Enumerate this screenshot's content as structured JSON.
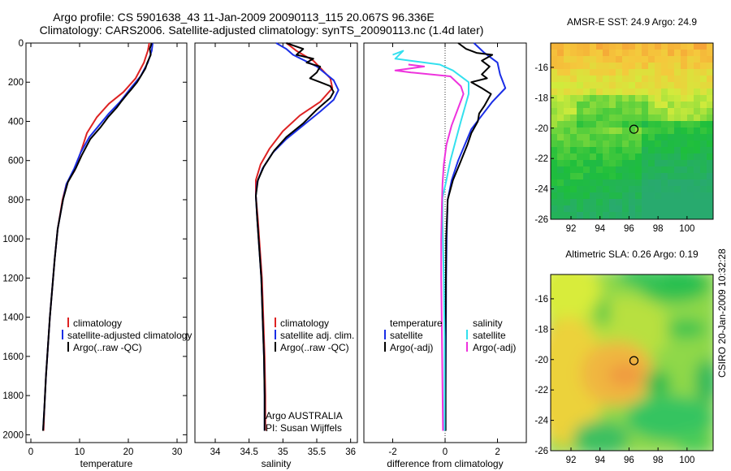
{
  "title_line1": "Argo profile: CS 5901638_43 11-Jan-2009 20090113_115 20.067S 96.336E",
  "title_line2": "Climatology: CARS2006. Satellite-adjusted climatology: synTS_20090113.nc (1.4d later)",
  "credit": "CSIRO 20-Jan-2009 10:32:28",
  "argo_line1": "Argo AUSTRALIA",
  "argo_line2": "PI: Susan Wijffels",
  "colors": {
    "climatology": "#dd2222",
    "satellite": "#1a2ee6",
    "argo": "#000000",
    "cyan": "#33e0ee",
    "magenta": "#ee33dd"
  },
  "chart_data": [
    {
      "type": "line",
      "xlabel": "temperature",
      "xlim": [
        -1,
        32
      ],
      "ylim": [
        0,
        2040
      ],
      "y_reversed": true,
      "xticks": [
        0,
        10,
        20,
        30
      ],
      "yticks": [
        0,
        200,
        400,
        600,
        800,
        1000,
        1200,
        1400,
        1600,
        1800,
        2000
      ],
      "legend": [
        "climatology",
        "satellite-adjusted climatology",
        "Argo(..raw -QC)"
      ],
      "series": [
        {
          "name": "climatology",
          "color": "climatology",
          "points": [
            [
              24.3,
              0
            ],
            [
              24,
              40
            ],
            [
              23.2,
              100
            ],
            [
              21.5,
              180
            ],
            [
              19,
              250
            ],
            [
              16,
              310
            ],
            [
              13.5,
              380
            ],
            [
              11.5,
              460
            ],
            [
              10.2,
              560
            ],
            [
              9,
              650
            ],
            [
              7.3,
              720
            ],
            [
              6.5,
              800
            ],
            [
              5.5,
              950
            ],
            [
              4.9,
              1100
            ],
            [
              4.4,
              1250
            ],
            [
              3.9,
              1400
            ],
            [
              3.5,
              1550
            ],
            [
              3.1,
              1700
            ],
            [
              2.8,
              1850
            ],
            [
              2.6,
              1980
            ]
          ]
        },
        {
          "name": "satellite-adjusted climatology",
          "color": "satellite",
          "points": [
            [
              25,
              0
            ],
            [
              24.8,
              40
            ],
            [
              24,
              100
            ],
            [
              22.5,
              170
            ],
            [
              20.5,
              230
            ],
            [
              18.3,
              300
            ],
            [
              16,
              360
            ],
            [
              14,
              420
            ],
            [
              12,
              480
            ],
            [
              10.2,
              560
            ],
            [
              8.9,
              640
            ],
            [
              7.3,
              720
            ],
            [
              6.6,
              800
            ],
            [
              5.5,
              950
            ],
            [
              4.9,
              1100
            ],
            [
              4.4,
              1250
            ],
            [
              3.9,
              1400
            ],
            [
              3.5,
              1550
            ],
            [
              3.1,
              1700
            ],
            [
              2.8,
              1850
            ],
            [
              2.5,
              1980
            ]
          ]
        },
        {
          "name": "Argo(..raw -QC)",
          "color": "argo",
          "points": [
            [
              24.8,
              0
            ],
            [
              24.4,
              30
            ],
            [
              24.6,
              60
            ],
            [
              23.9,
              100
            ],
            [
              23.5,
              130
            ],
            [
              22.3,
              180
            ],
            [
              21.8,
              200
            ],
            [
              20.5,
              240
            ],
            [
              19.8,
              260
            ],
            [
              18.5,
              300
            ],
            [
              17.6,
              330
            ],
            [
              15.8,
              380
            ],
            [
              14.3,
              430
            ],
            [
              12.2,
              490
            ],
            [
              10.5,
              570
            ],
            [
              9.2,
              640
            ],
            [
              7.6,
              710
            ],
            [
              6.6,
              800
            ],
            [
              5.5,
              950
            ],
            [
              4.9,
              1100
            ],
            [
              4.4,
              1250
            ],
            [
              3.9,
              1400
            ],
            [
              3.5,
              1550
            ],
            [
              3.1,
              1700
            ],
            [
              2.8,
              1850
            ],
            [
              2.5,
              1980
            ]
          ]
        }
      ]
    },
    {
      "type": "line",
      "xlabel": "salinity",
      "xlim": [
        33.7,
        36.1
      ],
      "ylim": [
        0,
        2040
      ],
      "y_reversed": true,
      "xticks": [
        34,
        34.5,
        35,
        35.5,
        36
      ],
      "yticks": [],
      "legend": [
        "climatology",
        "satellite adj. clim.",
        "Argo(..raw -QC)"
      ],
      "series": [
        {
          "name": "climatology",
          "color": "climatology",
          "points": [
            [
              35.05,
              0
            ],
            [
              35.2,
              40
            ],
            [
              35.45,
              90
            ],
            [
              35.7,
              180
            ],
            [
              35.73,
              230
            ],
            [
              35.55,
              300
            ],
            [
              35.25,
              370
            ],
            [
              35.0,
              450
            ],
            [
              34.8,
              540
            ],
            [
              34.67,
              620
            ],
            [
              34.6,
              700
            ],
            [
              34.6,
              780
            ],
            [
              34.63,
              900
            ],
            [
              34.66,
              1050
            ],
            [
              34.69,
              1200
            ],
            [
              34.71,
              1400
            ],
            [
              34.73,
              1600
            ],
            [
              34.74,
              1800
            ],
            [
              34.74,
              1980
            ]
          ]
        },
        {
          "name": "satellite adj. clim.",
          "color": "satellite",
          "points": [
            [
              34.9,
              0
            ],
            [
              35.05,
              30
            ],
            [
              35.15,
              60
            ],
            [
              35.5,
              120
            ],
            [
              35.75,
              190
            ],
            [
              35.82,
              240
            ],
            [
              35.75,
              290
            ],
            [
              35.55,
              350
            ],
            [
              35.3,
              420
            ],
            [
              35.05,
              490
            ],
            [
              34.85,
              560
            ],
            [
              34.7,
              640
            ],
            [
              34.62,
              710
            ],
            [
              34.6,
              780
            ],
            [
              34.62,
              900
            ],
            [
              34.65,
              1050
            ],
            [
              34.68,
              1200
            ],
            [
              34.7,
              1400
            ],
            [
              34.72,
              1600
            ],
            [
              34.73,
              1800
            ],
            [
              34.73,
              1980
            ]
          ]
        },
        {
          "name": "Argo(..raw -QC)",
          "color": "argo",
          "points": [
            [
              35.05,
              0
            ],
            [
              35.3,
              30
            ],
            [
              35.2,
              60
            ],
            [
              35.45,
              80
            ],
            [
              35.35,
              100
            ],
            [
              35.55,
              120
            ],
            [
              35.5,
              150
            ],
            [
              35.4,
              180
            ],
            [
              35.55,
              200
            ],
            [
              35.7,
              220
            ],
            [
              35.75,
              250
            ],
            [
              35.7,
              280
            ],
            [
              35.5,
              340
            ],
            [
              35.3,
              410
            ],
            [
              35.05,
              480
            ],
            [
              34.87,
              550
            ],
            [
              34.72,
              630
            ],
            [
              34.63,
              700
            ],
            [
              34.6,
              780
            ],
            [
              34.62,
              900
            ],
            [
              34.65,
              1050
            ],
            [
              34.68,
              1200
            ],
            [
              34.7,
              1400
            ],
            [
              34.72,
              1600
            ],
            [
              34.73,
              1800
            ],
            [
              34.73,
              1980
            ]
          ]
        }
      ]
    },
    {
      "type": "line",
      "xlabel": "difference from climatology",
      "xlim": [
        -3.1,
        3.1
      ],
      "ylim": [
        0,
        2040
      ],
      "y_reversed": true,
      "xticks": [
        -2,
        0,
        2
      ],
      "yticks": [],
      "zero_line": true,
      "legend_left": [
        "temperature",
        "satellite",
        "Argo(-adj)"
      ],
      "legend_right": [
        "salinity",
        "satellite",
        "Argo(-adj)"
      ],
      "series": [
        {
          "name": "temperature satellite",
          "color": "satellite",
          "points": [
            [
              1.1,
              0
            ],
            [
              1.5,
              50
            ],
            [
              2,
              100
            ],
            [
              2.1,
              160
            ],
            [
              2.3,
              230
            ],
            [
              1.8,
              300
            ],
            [
              1.4,
              370
            ],
            [
              1,
              440
            ],
            [
              0.75,
              520
            ],
            [
              0.5,
              600
            ],
            [
              0.25,
              700
            ],
            [
              0.1,
              800
            ],
            [
              0.06,
              1000
            ],
            [
              0.04,
              1200
            ],
            [
              0.03,
              1500
            ],
            [
              0.02,
              1800
            ],
            [
              0.02,
              1980
            ]
          ]
        },
        {
          "name": "temperature Argo(-adj)",
          "color": "argo",
          "points": [
            [
              0.5,
              0
            ],
            [
              0.8,
              30
            ],
            [
              1.2,
              50
            ],
            [
              1.8,
              60
            ],
            [
              1.4,
              90
            ],
            [
              1.7,
              120
            ],
            [
              1.4,
              160
            ],
            [
              1.6,
              180
            ],
            [
              1.0,
              200
            ],
            [
              1.4,
              230
            ],
            [
              1.75,
              260
            ],
            [
              1.5,
              320
            ],
            [
              1.3,
              360
            ],
            [
              1.25,
              400
            ],
            [
              1.0,
              460
            ],
            [
              0.85,
              520
            ],
            [
              0.55,
              620
            ],
            [
              0.3,
              700
            ],
            [
              0.1,
              800
            ],
            [
              0.04,
              1000
            ],
            [
              0.03,
              1200
            ],
            [
              0.02,
              1500
            ],
            [
              0.02,
              1800
            ],
            [
              0.02,
              1980
            ]
          ]
        },
        {
          "name": "salinity satellite",
          "color": "cyan",
          "points": [
            [
              -2.0,
              60
            ],
            [
              -1.6,
              40
            ],
            [
              -1.9,
              80
            ],
            [
              -0.2,
              110
            ],
            [
              0.3,
              140
            ],
            [
              0.9,
              200
            ],
            [
              0.9,
              260
            ],
            [
              0.75,
              330
            ],
            [
              0.6,
              400
            ],
            [
              0.4,
              500
            ],
            [
              0.2,
              600
            ],
            [
              0.05,
              700
            ],
            [
              -0.1,
              790
            ],
            [
              -0.1,
              900
            ],
            [
              -0.05,
              1200
            ],
            [
              -0.02,
              1500
            ],
            [
              -0.02,
              1980
            ]
          ]
        },
        {
          "name": "salinity Argo(-adj)",
          "color": "magenta",
          "points": [
            [
              -1.4,
              110
            ],
            [
              -0.8,
              120
            ],
            [
              -1.9,
              140
            ],
            [
              -1.3,
              150
            ],
            [
              0.2,
              170
            ],
            [
              0.6,
              220
            ],
            [
              0.7,
              260
            ],
            [
              0.45,
              350
            ],
            [
              0.25,
              420
            ],
            [
              0.05,
              520
            ],
            [
              -0.05,
              620
            ],
            [
              -0.1,
              720
            ],
            [
              -0.12,
              820
            ],
            [
              -0.15,
              1000
            ],
            [
              -0.15,
              1200
            ],
            [
              -0.12,
              1500
            ],
            [
              -0.08,
              1980
            ]
          ]
        }
      ]
    },
    {
      "type": "heatmap",
      "title": "AMSR-E SST: 24.9 Argo: 24.9",
      "xlim": [
        90.6,
        101.8
      ],
      "ylim": [
        -26,
        -14.4
      ],
      "xticks": [
        92,
        94,
        96,
        98,
        100
      ],
      "yticks": [
        -16,
        -18,
        -20,
        -22,
        -24,
        -26
      ],
      "marker": [
        96.34,
        -20.07
      ]
    },
    {
      "type": "heatmap",
      "title": "Altimetric SLA: 0.26 Argo: 0.19",
      "xlim": [
        90.6,
        101.8
      ],
      "ylim": [
        -26,
        -14.4
      ],
      "xticks": [
        92,
        94,
        96,
        98,
        100
      ],
      "yticks": [
        -16,
        -18,
        -20,
        -22,
        -24,
        -26
      ],
      "marker": [
        96.34,
        -20.07
      ]
    }
  ]
}
